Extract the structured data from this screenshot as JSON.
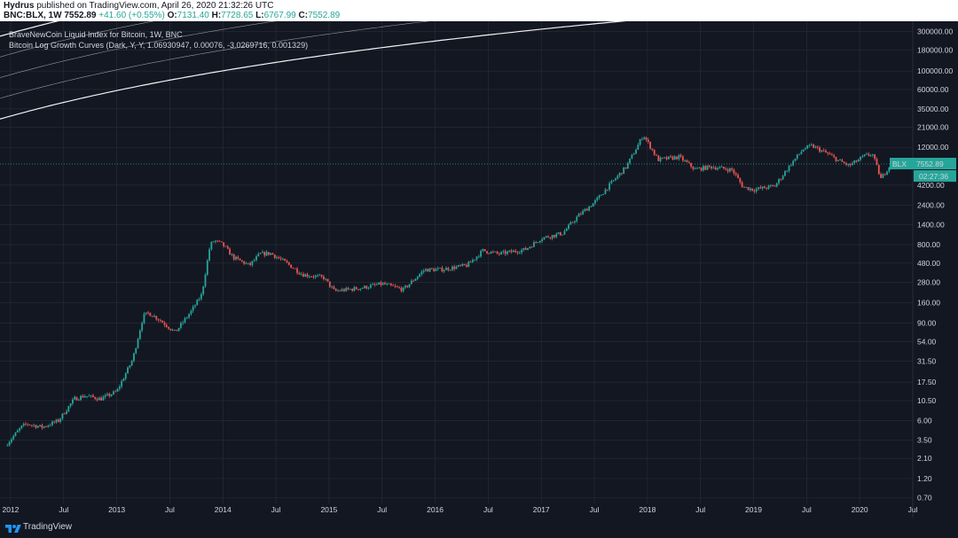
{
  "header": {
    "author": "Hydrus",
    "published_text": "published on TradingView.com, April 26, 2020 21:32:26 UTC",
    "symbol": "BNC:BLX, 1W",
    "last": "7552.89",
    "change": "+41.60 (+0.55%)",
    "open_label": "O:",
    "open": "7131.40",
    "high_label": "H:",
    "high": "7728.65",
    "low_label": "L:",
    "low": "6767.99",
    "close_label": "C:",
    "close": "7552.89"
  },
  "legend": {
    "title": "BraveNewCoin Liquid Index for Bitcoin, 1W, BNC",
    "indicator": "Bitcoin Log Growth Curves (Dark, Y, Y, 1.06930947, 0.00076, -3.0269716, 0.001329)"
  },
  "footer": {
    "brand": "TradingView"
  },
  "chart_data": {
    "type": "candlestick",
    "scale": "log",
    "ylim": [
      0.6,
      400000
    ],
    "xlim": [
      2011.9,
      2020.5
    ],
    "y_ticks": [
      0.7,
      1.2,
      2.1,
      3.5,
      6.0,
      10.5,
      17.5,
      31.5,
      54.0,
      90.0,
      160.0,
      280.0,
      480.0,
      800.0,
      1400.0,
      2400.0,
      4200.0,
      12000.0,
      21000.0,
      35000.0,
      60000.0,
      100000.0,
      180000.0,
      300000.0
    ],
    "y_tick_labels": [
      "0.70",
      "1.20",
      "2.10",
      "3.50",
      "6.00",
      "10.50",
      "17.50",
      "31.50",
      "54.00",
      "90.00",
      "160.00",
      "280.00",
      "480.00",
      "800.00",
      "1400.00",
      "2400.00",
      "4200.00",
      "12000.00",
      "21000.00",
      "35000.00",
      "60000.00",
      "100000.00",
      "180000.00",
      "300000.00"
    ],
    "x_ticks": [
      {
        "label": "2012",
        "t": 2012.0
      },
      {
        "label": "Jul",
        "t": 2012.5
      },
      {
        "label": "2013",
        "t": 2013.0
      },
      {
        "label": "Jul",
        "t": 2013.5
      },
      {
        "label": "2014",
        "t": 2014.0
      },
      {
        "label": "Jul",
        "t": 2014.5
      },
      {
        "label": "2015",
        "t": 2015.0
      },
      {
        "label": "Jul",
        "t": 2015.5
      },
      {
        "label": "2016",
        "t": 2016.0
      },
      {
        "label": "Jul",
        "t": 2016.5
      },
      {
        "label": "2017",
        "t": 2017.0
      },
      {
        "label": "Jul",
        "t": 2017.5
      },
      {
        "label": "2018",
        "t": 2018.0
      },
      {
        "label": "Jul",
        "t": 2018.5
      },
      {
        "label": "2019",
        "t": 2019.0
      },
      {
        "label": "Jul",
        "t": 2019.5
      },
      {
        "label": "2020",
        "t": 2020.0
      },
      {
        "label": "Jul",
        "t": 2020.5
      }
    ],
    "price_anchors": [
      [
        2011.95,
        3.0
      ],
      [
        2012.1,
        5.0
      ],
      [
        2012.15,
        5.5
      ],
      [
        2012.3,
        5.0
      ],
      [
        2012.45,
        6.0
      ],
      [
        2012.6,
        11.0
      ],
      [
        2012.7,
        12.0
      ],
      [
        2012.85,
        11.0
      ],
      [
        2013.0,
        13.5
      ],
      [
        2013.15,
        33.0
      ],
      [
        2013.25,
        110.0
      ],
      [
        2013.3,
        120.0
      ],
      [
        2013.4,
        100.0
      ],
      [
        2013.55,
        70.0
      ],
      [
        2013.7,
        125.0
      ],
      [
        2013.8,
        200.0
      ],
      [
        2013.88,
        800.0
      ],
      [
        2013.92,
        900.0
      ],
      [
        2014.0,
        800.0
      ],
      [
        2014.1,
        560.0
      ],
      [
        2014.25,
        450.0
      ],
      [
        2014.35,
        620.0
      ],
      [
        2014.45,
        630.0
      ],
      [
        2014.6,
        480.0
      ],
      [
        2014.75,
        350.0
      ],
      [
        2014.95,
        320.0
      ],
      [
        2015.05,
        220.0
      ],
      [
        2015.3,
        240.0
      ],
      [
        2015.5,
        270.0
      ],
      [
        2015.7,
        230.0
      ],
      [
        2015.9,
        400.0
      ],
      [
        2016.05,
        400.0
      ],
      [
        2016.3,
        450.0
      ],
      [
        2016.45,
        680.0
      ],
      [
        2016.6,
        620.0
      ],
      [
        2016.85,
        700.0
      ],
      [
        2017.0,
        960.0
      ],
      [
        2017.2,
        1100.0
      ],
      [
        2017.35,
        1800.0
      ],
      [
        2017.5,
        2600.0
      ],
      [
        2017.65,
        4300.0
      ],
      [
        2017.8,
        7000.0
      ],
      [
        2017.9,
        12000.0
      ],
      [
        2017.96,
        17000.0
      ],
      [
        2018.0,
        14000.0
      ],
      [
        2018.1,
        8500.0
      ],
      [
        2018.3,
        9200.0
      ],
      [
        2018.45,
        6500.0
      ],
      [
        2018.6,
        7000.0
      ],
      [
        2018.8,
        6400.0
      ],
      [
        2018.9,
        4000.0
      ],
      [
        2019.0,
        3700.0
      ],
      [
        2019.2,
        4100.0
      ],
      [
        2019.35,
        7500.0
      ],
      [
        2019.47,
        11500.0
      ],
      [
        2019.55,
        12500.0
      ],
      [
        2019.7,
        10000.0
      ],
      [
        2019.8,
        8300.0
      ],
      [
        2019.9,
        7200.0
      ],
      [
        2020.05,
        9500.0
      ],
      [
        2020.12,
        10000.0
      ],
      [
        2020.2,
        5000.0
      ],
      [
        2020.27,
        6900.0
      ],
      [
        2020.31,
        7552.89
      ]
    ],
    "growth_curves": {
      "base_a": 1.06930947,
      "base_b": -3.0269716,
      "offsets": [
        0.0,
        0.25,
        0.5,
        0.75,
        1.0,
        1.25,
        1.5,
        1.75,
        2.0,
        2.2,
        2.35,
        2.5,
        2.75,
        3.0
      ],
      "bold_indices": [
        0,
        4,
        13
      ]
    },
    "price_line": 7552.89,
    "last_label": "BLX · 7552.89",
    "countdown": "02:27:36",
    "colors": {
      "up": "#26a69a",
      "down": "#ef5350",
      "curve": "#ffffff",
      "background": "#131722",
      "grid": "#2a2e39",
      "price_line": "#26a69a"
    }
  }
}
